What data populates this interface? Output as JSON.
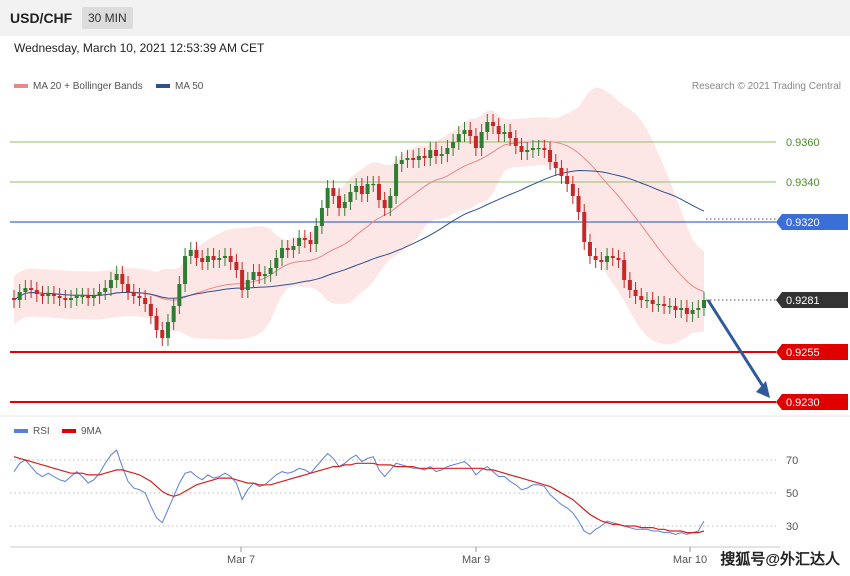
{
  "header": {
    "symbol": "USD/CHF",
    "timeframe": "30 MIN"
  },
  "timestamp": "Wednesday, March 10, 2021 12:53:39 AM CET",
  "legend": {
    "ma20_bb": "MA 20 + Bollinger Bands",
    "ma50": "MA 50",
    "rsi": "RSI",
    "rsi_ma": "9MA"
  },
  "credit": "Research © 2021 Trading Central",
  "watermark": "搜狐号@外汇达人",
  "colors": {
    "ma20": "#e88888",
    "ma50": "#2f4f8f",
    "band": "#fde0e0",
    "bull": "#2e7d32",
    "bear": "#c62828",
    "support": "#e00000",
    "resistance": "#3a6fd8",
    "target": "#90c060",
    "arrow": "#2f5a9c",
    "rsi": "#5b7fd6"
  },
  "chart_data": [
    {
      "type": "candlestick",
      "title": "USD/CHF",
      "timeframe": "30 MIN",
      "x_tick_labels": [
        "Mar 7",
        "Mar 9",
        "Mar 10"
      ],
      "ylim": [
        0.9229,
        0.9378
      ],
      "levels": [
        {
          "label": "0.9360",
          "value": 0.936,
          "kind": "target"
        },
        {
          "label": "0.9340",
          "value": 0.934,
          "kind": "target"
        },
        {
          "label": "0.9320",
          "value": 0.932,
          "kind": "resistance"
        },
        {
          "label": "0.9281",
          "value": 0.9281,
          "kind": "last"
        },
        {
          "label": "0.9255",
          "value": 0.9255,
          "kind": "support"
        },
        {
          "label": "0.9230",
          "value": 0.923,
          "kind": "support"
        }
      ],
      "close": [
        0.9281,
        0.9285,
        0.9287,
        0.9286,
        0.9284,
        0.9283,
        0.9284,
        0.9283,
        0.9282,
        0.9281,
        0.9282,
        0.9283,
        0.9283,
        0.9282,
        0.9283,
        0.9285,
        0.9287,
        0.9291,
        0.9294,
        0.9289,
        0.9285,
        0.9283,
        0.9282,
        0.9279,
        0.9273,
        0.9266,
        0.9262,
        0.927,
        0.9278,
        0.9289,
        0.9303,
        0.9306,
        0.9302,
        0.93,
        0.9303,
        0.9301,
        0.9302,
        0.9303,
        0.93,
        0.9296,
        0.9286,
        0.9291,
        0.9295,
        0.9293,
        0.9294,
        0.9297,
        0.9302,
        0.9307,
        0.9306,
        0.9308,
        0.9312,
        0.9311,
        0.9309,
        0.9318,
        0.9327,
        0.9337,
        0.9333,
        0.9327,
        0.933,
        0.9335,
        0.9338,
        0.9334,
        0.9339,
        0.9339,
        0.9331,
        0.9327,
        0.9333,
        0.9349,
        0.9351,
        0.9352,
        0.9351,
        0.9353,
        0.9352,
        0.9356,
        0.9353,
        0.9354,
        0.9357,
        0.936,
        0.9364,
        0.9366,
        0.9363,
        0.9357,
        0.9365,
        0.937,
        0.9368,
        0.9364,
        0.9365,
        0.9362,
        0.9358,
        0.9355,
        0.9356,
        0.9357,
        0.9357,
        0.9356,
        0.935,
        0.9347,
        0.9343,
        0.9339,
        0.9333,
        0.9325,
        0.931,
        0.9303,
        0.9301,
        0.93,
        0.9303,
        0.9302,
        0.9301,
        0.9291,
        0.9286,
        0.9283,
        0.9281,
        0.9281,
        0.9279,
        0.9279,
        0.9278,
        0.9278,
        0.9276,
        0.9277,
        0.9274,
        0.9276,
        0.9277,
        0.9281
      ],
      "open": [
        0.9282,
        0.9281,
        0.9285,
        0.9287,
        0.9286,
        0.9284,
        0.9283,
        0.9284,
        0.9283,
        0.9282,
        0.9281,
        0.9282,
        0.9283,
        0.9283,
        0.9282,
        0.9283,
        0.9285,
        0.9287,
        0.9291,
        0.9294,
        0.9289,
        0.9285,
        0.9283,
        0.9282,
        0.9279,
        0.9273,
        0.9266,
        0.9262,
        0.927,
        0.9278,
        0.9289,
        0.9303,
        0.9306,
        0.9302,
        0.93,
        0.9303,
        0.9301,
        0.9302,
        0.9303,
        0.93,
        0.9296,
        0.9286,
        0.9291,
        0.9295,
        0.9293,
        0.9294,
        0.9297,
        0.9302,
        0.9307,
        0.9306,
        0.9308,
        0.9312,
        0.9311,
        0.9309,
        0.9318,
        0.9327,
        0.9337,
        0.9333,
        0.9327,
        0.933,
        0.9335,
        0.9338,
        0.9334,
        0.9339,
        0.9339,
        0.9331,
        0.9327,
        0.9333,
        0.9349,
        0.9351,
        0.9352,
        0.9351,
        0.9353,
        0.9352,
        0.9356,
        0.9353,
        0.9354,
        0.9357,
        0.936,
        0.9364,
        0.9366,
        0.9363,
        0.9357,
        0.9365,
        0.937,
        0.9368,
        0.9364,
        0.9365,
        0.9362,
        0.9358,
        0.9355,
        0.9356,
        0.9357,
        0.9357,
        0.9356,
        0.935,
        0.9347,
        0.9343,
        0.9339,
        0.9333,
        0.9325,
        0.931,
        0.9303,
        0.9301,
        0.93,
        0.9303,
        0.9302,
        0.9301,
        0.9291,
        0.9286,
        0.9283,
        0.9281,
        0.9281,
        0.9279,
        0.9279,
        0.9278,
        0.9278,
        0.9276,
        0.9277,
        0.9274,
        0.9276,
        0.9277
      ],
      "ma20_visible": true,
      "ma50_visible": true,
      "bollinger_visible": true
    },
    {
      "type": "line",
      "title": "RSI",
      "y_tick_labels": [
        "70",
        "50",
        "30"
      ],
      "ylim": [
        20,
        80
      ],
      "reference_levels": [
        70,
        50,
        30
      ],
      "series": [
        {
          "name": "RSI",
          "values": [
            63,
            68,
            70,
            66,
            62,
            60,
            62,
            60,
            58,
            57,
            60,
            63,
            60,
            56,
            58,
            62,
            68,
            73,
            76,
            66,
            57,
            53,
            52,
            50,
            42,
            35,
            32,
            40,
            48,
            56,
            62,
            63,
            60,
            58,
            61,
            59,
            60,
            62,
            60,
            56,
            46,
            52,
            56,
            54,
            55,
            58,
            61,
            63,
            62,
            63,
            65,
            64,
            62,
            66,
            70,
            74,
            71,
            66,
            68,
            71,
            73,
            69,
            71,
            72,
            64,
            60,
            64,
            68,
            67,
            66,
            65,
            65,
            64,
            66,
            63,
            64,
            66,
            67,
            68,
            69,
            66,
            61,
            64,
            66,
            63,
            60,
            60,
            57,
            55,
            52,
            53,
            55,
            55,
            54,
            49,
            46,
            43,
            41,
            38,
            33,
            27,
            25,
            28,
            30,
            33,
            32,
            31,
            30,
            29,
            28,
            28,
            28,
            27,
            27,
            26,
            26,
            25,
            26,
            25,
            26,
            27,
            33
          ]
        },
        {
          "name": "9MA",
          "values": [
            72,
            71,
            70,
            69,
            68,
            67,
            66,
            65,
            64,
            63,
            62,
            62,
            62,
            61,
            61,
            61,
            62,
            63,
            64,
            64,
            63,
            62,
            61,
            59,
            57,
            54,
            51,
            49,
            48,
            49,
            51,
            53,
            55,
            56,
            57,
            58,
            59,
            59,
            59,
            58,
            57,
            56,
            56,
            55,
            55,
            55,
            56,
            57,
            58,
            59,
            60,
            61,
            62,
            63,
            64,
            65,
            66,
            66,
            67,
            67,
            68,
            68,
            68,
            68,
            67,
            67,
            67,
            66,
            66,
            66,
            66,
            65,
            65,
            65,
            65,
            65,
            65,
            65,
            65,
            65,
            65,
            65,
            65,
            64,
            64,
            63,
            62,
            61,
            60,
            59,
            58,
            57,
            56,
            55,
            54,
            52,
            50,
            48,
            46,
            43,
            40,
            37,
            35,
            33,
            32,
            31,
            31,
            30,
            30,
            30,
            29,
            29,
            29,
            28,
            28,
            27,
            27,
            27,
            26,
            26,
            26,
            27
          ]
        }
      ]
    }
  ]
}
